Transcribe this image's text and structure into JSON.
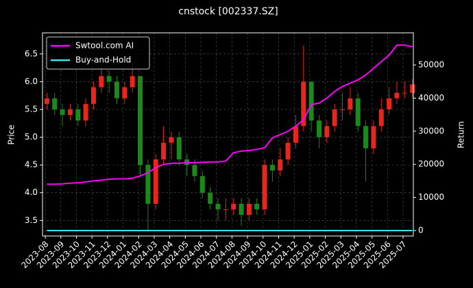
{
  "chart_data": {
    "type": "candlestick",
    "title": "cnstock [002337.SZ]",
    "ylabel": "Price",
    "y2label": "Return",
    "x": [
      0.1,
      0.6,
      1.1,
      1.6,
      2.1,
      2.6,
      3.1,
      3.6,
      4.1,
      4.6,
      5.1,
      5.6,
      6.1,
      6.6,
      7.1,
      7.6,
      8.1,
      8.6,
      9.1,
      9.6,
      10.1,
      10.6,
      11.1,
      11.6,
      12.1,
      12.6,
      13.1,
      13.6,
      14.1,
      14.6,
      15.1,
      15.6,
      16.1,
      16.6,
      17.1,
      17.6,
      18.1,
      18.6,
      19.1,
      19.6,
      20.1,
      20.6,
      21.1,
      21.6,
      22.1,
      22.6,
      23.1,
      23.6
    ],
    "open": [
      5.6,
      5.7,
      5.5,
      5.4,
      5.5,
      5.3,
      5.6,
      5.9,
      6.1,
      6.0,
      5.7,
      5.9,
      6.1,
      4.5,
      3.8,
      4.6,
      4.9,
      5.0,
      4.6,
      4.5,
      4.3,
      4.0,
      3.8,
      3.7,
      3.7,
      3.8,
      3.6,
      3.8,
      3.7,
      4.5,
      4.4,
      4.6,
      4.9,
      5.2,
      6.0,
      5.3,
      5.0,
      5.2,
      5.5,
      5.5,
      5.7,
      5.2,
      4.8,
      5.2,
      5.5,
      5.7,
      5.8,
      5.8
    ],
    "high": [
      5.8,
      5.8,
      5.6,
      5.6,
      5.6,
      5.7,
      6.0,
      6.3,
      6.2,
      6.1,
      6.0,
      6.4,
      6.1,
      4.6,
      4.7,
      5.2,
      5.1,
      5.1,
      4.7,
      4.6,
      4.4,
      4.1,
      3.9,
      3.9,
      3.9,
      3.9,
      3.9,
      3.9,
      4.6,
      4.6,
      4.8,
      5.0,
      5.4,
      6.65,
      6.0,
      5.4,
      5.3,
      5.6,
      5.8,
      5.9,
      5.8,
      5.3,
      5.3,
      5.7,
      5.9,
      6.0,
      6.0,
      6.05
    ],
    "low": [
      5.5,
      5.4,
      5.2,
      5.3,
      5.2,
      5.2,
      5.5,
      5.8,
      5.8,
      5.6,
      5.6,
      5.8,
      4.3,
      3.3,
      3.7,
      4.5,
      4.6,
      4.5,
      4.3,
      4.2,
      3.9,
      3.7,
      3.5,
      3.5,
      3.6,
      3.4,
      3.5,
      3.6,
      3.6,
      4.2,
      4.3,
      4.5,
      4.8,
      5.1,
      5.1,
      4.8,
      4.9,
      5.1,
      5.3,
      5.4,
      5.1,
      4.2,
      4.7,
      5.1,
      5.4,
      5.6,
      5.7,
      5.7
    ],
    "close": [
      5.7,
      5.5,
      5.4,
      5.5,
      5.3,
      5.6,
      5.9,
      6.1,
      6.0,
      5.7,
      5.9,
      6.1,
      4.5,
      3.8,
      4.6,
      4.9,
      5.0,
      4.6,
      4.5,
      4.3,
      4.0,
      3.8,
      3.7,
      3.7,
      3.8,
      3.6,
      3.8,
      3.7,
      4.5,
      4.4,
      4.6,
      4.9,
      5.2,
      6.0,
      5.3,
      5.0,
      5.2,
      5.5,
      5.5,
      5.7,
      5.2,
      4.8,
      5.2,
      5.5,
      5.7,
      5.8,
      5.8,
      5.95
    ],
    "up_color": "#e8261c",
    "down_color": "#1a8a1a",
    "series": [
      {
        "name": "Swtool.com AI",
        "color": "#ff00ff",
        "axis": "y2",
        "values": [
          14000,
          14000,
          14100,
          14300,
          14400,
          14700,
          15000,
          15200,
          15500,
          15600,
          15600,
          15800,
          16500,
          17500,
          19000,
          20000,
          20300,
          20300,
          20500,
          20500,
          20600,
          20700,
          20700,
          21000,
          23500,
          24000,
          24200,
          24500,
          25000,
          28000,
          29000,
          30000,
          31500,
          33500,
          38000,
          38500,
          40000,
          42000,
          43500,
          44500,
          45500,
          47000,
          49000,
          51000,
          53000,
          56000,
          56000,
          55500
        ]
      },
      {
        "name": "Buy-and-Hold",
        "color": "#33e6f0",
        "axis": "y2",
        "values": [
          0,
          0,
          0,
          0,
          0,
          0,
          0,
          0,
          0,
          0,
          0,
          0,
          0,
          0,
          0,
          0,
          0,
          0,
          0,
          0,
          0,
          0,
          0,
          0,
          0,
          0,
          0,
          0,
          0,
          0,
          0,
          0,
          0,
          0,
          0,
          0,
          0,
          0,
          0,
          0,
          0,
          0,
          0,
          0,
          0,
          0,
          0,
          0
        ]
      }
    ],
    "xlim": [
      -0.18,
      23.66
    ],
    "xticks": [
      {
        "value": 0,
        "label": "2023-08"
      },
      {
        "value": 1,
        "label": "2023-09"
      },
      {
        "value": 2,
        "label": "2023-10"
      },
      {
        "value": 3,
        "label": "2023-11"
      },
      {
        "value": 4,
        "label": "2023-12"
      },
      {
        "value": 5,
        "label": "2024-01"
      },
      {
        "value": 6,
        "label": "2024-02"
      },
      {
        "value": 7,
        "label": "2024-03"
      },
      {
        "value": 8,
        "label": "2024-04"
      },
      {
        "value": 9,
        "label": "2024-05"
      },
      {
        "value": 10,
        "label": "2024-06"
      },
      {
        "value": 11,
        "label": "2024-07"
      },
      {
        "value": 12,
        "label": "2024-08"
      },
      {
        "value": 13,
        "label": "2024-09"
      },
      {
        "value": 14,
        "label": "2024-10"
      },
      {
        "value": 15,
        "label": "2024-11"
      },
      {
        "value": 16,
        "label": "2024-12"
      },
      {
        "value": 17,
        "label": "2025-01"
      },
      {
        "value": 18,
        "label": "2025-02"
      },
      {
        "value": 19,
        "label": "2025-03"
      },
      {
        "value": 20,
        "label": "2025-04"
      },
      {
        "value": 21,
        "label": "2025-05"
      },
      {
        "value": 22,
        "label": "2025-06"
      },
      {
        "value": 23,
        "label": "2025-07"
      }
    ],
    "ylim": [
      3.22,
      6.88
    ],
    "yticks": [
      3.5,
      {
        "value": 4,
        "label": "4.0"
      },
      4.5,
      {
        "value": 5,
        "label": "5.0"
      },
      5.5,
      {
        "value": 6,
        "label": "6.0"
      },
      6.5
    ],
    "y2lim": [
      -1650,
      59700
    ],
    "y2ticks": [
      0,
      10000,
      20000,
      30000,
      40000,
      50000
    ],
    "grid": true,
    "legend": "upper left"
  }
}
